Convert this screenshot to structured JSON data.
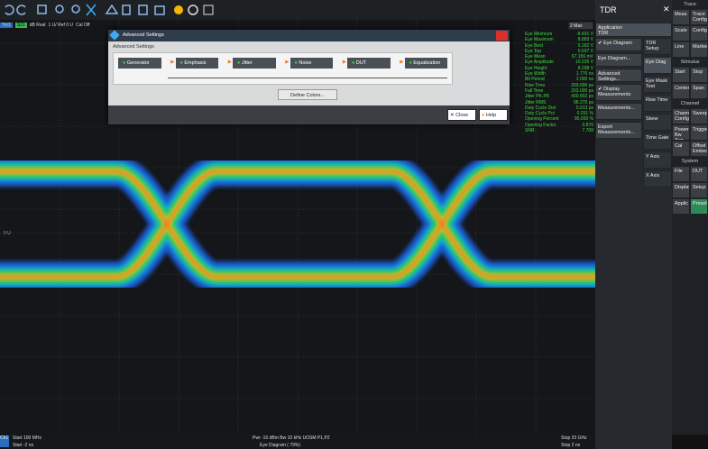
{
  "trace_info": {
    "trace": "Trc1",
    "param": "S21",
    "format": "dB Real",
    "scale": "1 U/ Ref 0 U",
    "cal": "Cal Off"
  },
  "marker_dropdown": "2 Max",
  "ref_label": "0 U",
  "measurements": [
    {
      "name": "Eye Minimum",
      "value": "-8.491 V"
    },
    {
      "name": "Eye Maximum",
      "value": "8.883 V"
    },
    {
      "name": "Eye Best",
      "value": "5.182 V"
    },
    {
      "name": "Eye Top",
      "value": "5.697 V"
    },
    {
      "name": "Eye Mean",
      "value": "67.156 mV"
    },
    {
      "name": "Eye Amplitude",
      "value": "10.226 V"
    },
    {
      "name": "Eye Height",
      "value": "8.298 V"
    },
    {
      "name": "Eye Width",
      "value": "1.776 ns"
    },
    {
      "name": "Bit Period",
      "value": "2.000 ns"
    },
    {
      "name": "Rise Time",
      "value": "203.000 ps"
    },
    {
      "name": "Fall Time",
      "value": "203.000 ps"
    },
    {
      "name": "Jitter PK-PK",
      "value": "430.802 ps"
    },
    {
      "name": "Jitter RMS",
      "value": "98.270 ps"
    },
    {
      "name": "Duty Cycle Dist",
      "value": "5.013 ps"
    },
    {
      "name": "Duty Cycle Pct",
      "value": "0.251 %"
    },
    {
      "name": "Opening Percent",
      "value": "90.059 %"
    },
    {
      "name": "Opening Factor",
      "value": "0.870"
    },
    {
      "name": "SNR",
      "value": "7.708"
    }
  ],
  "dialog": {
    "title": "Advanced Settings",
    "section": "Advanced Settings",
    "blocks": [
      "Generator",
      "Emphasis",
      "Jitter",
      "Noise",
      "DUT",
      "Equalization"
    ],
    "define_colors": "Define Colors...",
    "close": "Close",
    "help": "Help"
  },
  "tdr_panel": {
    "title": "TDR",
    "application_label": "Application",
    "application_value": "TDR",
    "buttons": [
      {
        "label": "Eye Diagram",
        "checked": true
      },
      {
        "label": "Eye Diagram...",
        "checked": false
      },
      {
        "label": "Advanced Settings...",
        "checked": false
      },
      {
        "label": "Display Measurements",
        "checked": true
      },
      {
        "label": "Measurements...",
        "checked": false
      },
      {
        "label": "Export Measurements...",
        "checked": false
      }
    ],
    "tabs": [
      "TDR Setup",
      "Eye Diag",
      "Eye Mask Test",
      "Rise Time",
      "Skew",
      "Time Gate",
      "Y Axis",
      "X Axis"
    ]
  },
  "side_panel": [
    {
      "title": "Trace",
      "items": [
        "Meas",
        "Trace Config",
        "Scale",
        "Config",
        "Line",
        "Marker"
      ]
    },
    {
      "title": "Stimulus",
      "items": [
        "Start",
        "Stop",
        "Center",
        "Span"
      ]
    },
    {
      "title": "Channel",
      "items": [
        "Channel Config",
        "Sweep",
        "Power Bw Avg",
        "Trigger",
        "Cal",
        "Offset Embed"
      ]
    },
    {
      "title": "System",
      "items": [
        "File",
        "DUT",
        "Display",
        "Setup",
        "Applic",
        "Preset"
      ]
    }
  ],
  "status": {
    "channel": "Ch1",
    "row1": [
      "Start  100 MHz",
      "Pwr  -10 dBm   Bw  10 kHz   UOSM P1,P2",
      "Stop  20 GHz"
    ],
    "row2": [
      "Start  -2 ns",
      "Eye Diagram (  79%)",
      "Stop  2 ns"
    ]
  }
}
